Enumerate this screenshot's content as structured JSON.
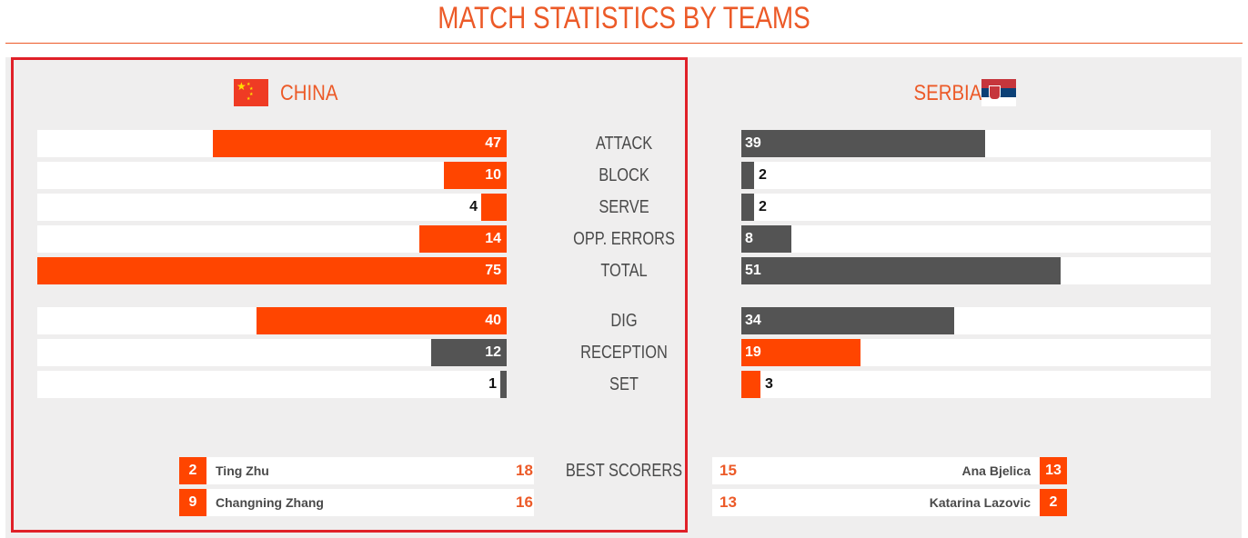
{
  "page_title": "MATCH STATISTICS BY TEAMS",
  "colors": {
    "accent": "#ff4500",
    "neutral": "#545454",
    "highlight": "#e02028",
    "title": "#ec5a28"
  },
  "teams": {
    "left": {
      "name": "CHINA",
      "flag_icon": "china-flag-icon"
    },
    "right": {
      "name": "SERBIA",
      "flag_icon": "serbia-flag-icon"
    }
  },
  "chart_data": {
    "type": "bar",
    "orientation": "horizontal-butterfly",
    "categories": [
      "ATTACK",
      "BLOCK",
      "SERVE",
      "OPP. ERRORS",
      "TOTAL",
      "DIG",
      "RECEPTION",
      "SET"
    ],
    "series": [
      {
        "name": "CHINA",
        "values": [
          47,
          10,
          4,
          14,
          75,
          40,
          12,
          1
        ]
      },
      {
        "name": "SERBIA",
        "values": [
          39,
          2,
          2,
          8,
          51,
          34,
          19,
          3
        ]
      }
    ],
    "bar_colors": {
      "CHINA": [
        "#ff4500",
        "#ff4500",
        "#ff4500",
        "#ff4500",
        "#ff4500",
        "#ff4500",
        "#545454",
        "#545454"
      ],
      "SERBIA": [
        "#545454",
        "#545454",
        "#545454",
        "#545454",
        "#545454",
        "#545454",
        "#ff4500",
        "#ff4500"
      ]
    },
    "xlim": [
      0,
      75
    ],
    "best_scorers_label": "BEST SCORERS",
    "best_scorers": {
      "CHINA": [
        {
          "number": "2",
          "name": "Ting Zhu",
          "points": "18"
        },
        {
          "number": "9",
          "name": "Changning Zhang",
          "points": "16"
        }
      ],
      "SERBIA": [
        {
          "number": "13",
          "name": "Ana Bjelica",
          "points": "15"
        },
        {
          "number": "2",
          "name": "Katarina Lazovic",
          "points": "13"
        }
      ]
    }
  }
}
